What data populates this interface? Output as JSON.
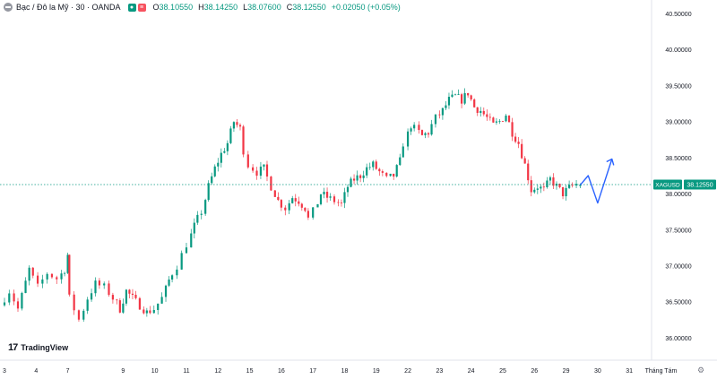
{
  "legend": {
    "title": "Bạc / Đô la Mỹ · 30 · OANDA",
    "o_label": "O",
    "o_value": "38.10550",
    "h_label": "H",
    "h_value": "38.14250",
    "l_label": "L",
    "l_value": "38.07600",
    "c_label": "C",
    "c_value": "38.12550",
    "change": "+0.02050 (+0.05%)"
  },
  "logo": {
    "text": "TradingView",
    "mark": "17"
  },
  "chart_data": {
    "type": "candlestick",
    "symbol": "XAGUSD",
    "last_price": "38.12550",
    "colors": {
      "up": "#089981",
      "down": "#f23645",
      "projection": "#2962ff",
      "price_line": "#089981"
    },
    "ylim": [
      35.9,
      40.55
    ],
    "y_ticks": [
      "40.50000",
      "40.00000",
      "39.50000",
      "39.00000",
      "38.50000",
      "38.00000",
      "37.50000",
      "37.00000",
      "36.50000",
      "36.00000"
    ],
    "x_ticks": [
      "3",
      "4",
      "7",
      "9",
      "10",
      "11",
      "12",
      "15",
      "16",
      "17",
      "18",
      "19",
      "22",
      "23",
      "24",
      "25",
      "26",
      "29",
      "30",
      "31",
      "Tháng Tám"
    ],
    "day_ticks": [
      {
        "label": "3",
        "day": 0
      },
      {
        "label": "4",
        "day": 1
      },
      {
        "label": "7",
        "day": 2
      },
      {
        "label": "9",
        "day": 3.75
      },
      {
        "label": "10",
        "day": 4.75
      },
      {
        "label": "11",
        "day": 5.75
      },
      {
        "label": "12",
        "day": 6.75
      },
      {
        "label": "15",
        "day": 7.75
      },
      {
        "label": "16",
        "day": 8.75
      },
      {
        "label": "17",
        "day": 9.75
      },
      {
        "label": "18",
        "day": 10.75
      },
      {
        "label": "19",
        "day": 11.75
      },
      {
        "label": "22",
        "day": 12.75
      },
      {
        "label": "23",
        "day": 13.75
      },
      {
        "label": "24",
        "day": 14.75
      },
      {
        "label": "25",
        "day": 15.75
      },
      {
        "label": "26",
        "day": 16.75
      },
      {
        "label": "29",
        "day": 17.75
      },
      {
        "label": "30",
        "day": 18.75
      },
      {
        "label": "31",
        "day": 19.75
      },
      {
        "label": "Tháng Tám",
        "day": 20.75
      }
    ],
    "price_path": [
      [
        0.0,
        36.45
      ],
      [
        0.3,
        36.65
      ],
      [
        0.55,
        36.4
      ],
      [
        0.9,
        36.95
      ],
      [
        1.2,
        36.7
      ],
      [
        1.5,
        36.9
      ],
      [
        1.8,
        36.82
      ],
      [
        2.0,
        36.95
      ],
      [
        2.05,
        37.15
      ],
      [
        2.2,
        36.55
      ],
      [
        2.5,
        36.25
      ],
      [
        2.75,
        36.55
      ],
      [
        3.0,
        36.75
      ],
      [
        3.3,
        36.7
      ],
      [
        3.55,
        36.55
      ],
      [
        3.75,
        36.4
      ],
      [
        3.95,
        36.65
      ],
      [
        4.15,
        36.55
      ],
      [
        4.4,
        36.45
      ],
      [
        4.6,
        36.35
      ],
      [
        4.85,
        36.4
      ],
      [
        5.1,
        36.55
      ],
      [
        5.3,
        36.8
      ],
      [
        5.6,
        37.0
      ],
      [
        5.9,
        37.3
      ],
      [
        6.1,
        37.55
      ],
      [
        6.35,
        37.75
      ],
      [
        6.55,
        38.1
      ],
      [
        6.75,
        38.35
      ],
      [
        6.95,
        38.55
      ],
      [
        7.15,
        38.7
      ],
      [
        7.35,
        39.0
      ],
      [
        7.55,
        38.9
      ],
      [
        7.7,
        38.6
      ],
      [
        7.85,
        38.4
      ],
      [
        8.1,
        38.3
      ],
      [
        8.3,
        38.35
      ],
      [
        8.55,
        38.1
      ],
      [
        8.75,
        37.9
      ],
      [
        9.0,
        37.8
      ],
      [
        9.2,
        37.95
      ],
      [
        9.4,
        37.9
      ],
      [
        9.6,
        37.8
      ],
      [
        9.75,
        37.65
      ],
      [
        9.9,
        37.75
      ],
      [
        10.1,
        38.0
      ],
      [
        10.3,
        37.95
      ],
      [
        10.55,
        37.9
      ],
      [
        10.75,
        37.85
      ],
      [
        10.95,
        38.1
      ],
      [
        11.15,
        38.2
      ],
      [
        11.35,
        38.25
      ],
      [
        11.55,
        38.35
      ],
      [
        11.75,
        38.4
      ],
      [
        11.95,
        38.3
      ],
      [
        12.2,
        38.2
      ],
      [
        12.4,
        38.25
      ],
      [
        12.6,
        38.45
      ],
      [
        12.75,
        38.7
      ],
      [
        12.95,
        38.95
      ],
      [
        13.1,
        38.9
      ],
      [
        13.3,
        38.8
      ],
      [
        13.5,
        38.85
      ],
      [
        13.75,
        39.05
      ],
      [
        13.95,
        39.15
      ],
      [
        14.15,
        39.3
      ],
      [
        14.35,
        39.35
      ],
      [
        14.55,
        39.3
      ],
      [
        14.75,
        39.4
      ],
      [
        14.95,
        39.2
      ],
      [
        15.15,
        39.15
      ],
      [
        15.35,
        39.05
      ],
      [
        15.55,
        38.95
      ],
      [
        15.75,
        39.0
      ],
      [
        15.95,
        39.1
      ],
      [
        16.15,
        38.85
      ],
      [
        16.35,
        38.7
      ],
      [
        16.55,
        38.4
      ],
      [
        16.75,
        38.05
      ],
      [
        16.95,
        38.1
      ],
      [
        17.15,
        38.05
      ],
      [
        17.35,
        38.2
      ],
      [
        17.55,
        38.1
      ],
      [
        17.75,
        38.0
      ],
      [
        17.95,
        38.08
      ],
      [
        18.2,
        38.13
      ]
    ],
    "projection": [
      [
        18.2,
        38.12
      ],
      [
        18.45,
        38.25
      ],
      [
        18.75,
        37.87
      ],
      [
        19.2,
        38.48
      ]
    ]
  }
}
